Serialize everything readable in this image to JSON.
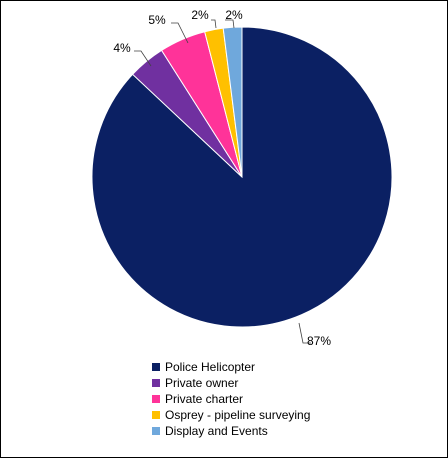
{
  "chart_data": {
    "type": "pie",
    "title": "",
    "slices": [
      {
        "label": "Police Helicopter",
        "value": 87,
        "display": "87%",
        "color": "#0b2063"
      },
      {
        "label": "Private owner",
        "value": 4,
        "display": "4%",
        "color": "#7030a0"
      },
      {
        "label": "Private charter",
        "value": 5,
        "display": "5%",
        "color": "#ff3399"
      },
      {
        "label": "Osprey - pipeline surveying",
        "value": 2,
        "display": "2%",
        "color": "#ffc000"
      },
      {
        "label": "Display and Events",
        "value": 2,
        "display": "2%",
        "color": "#6fa8dc"
      }
    ],
    "start_angle": "12 o'clock",
    "direction": "clockwise",
    "legend_position": "bottom",
    "data_labels": "outside with leader lines"
  }
}
